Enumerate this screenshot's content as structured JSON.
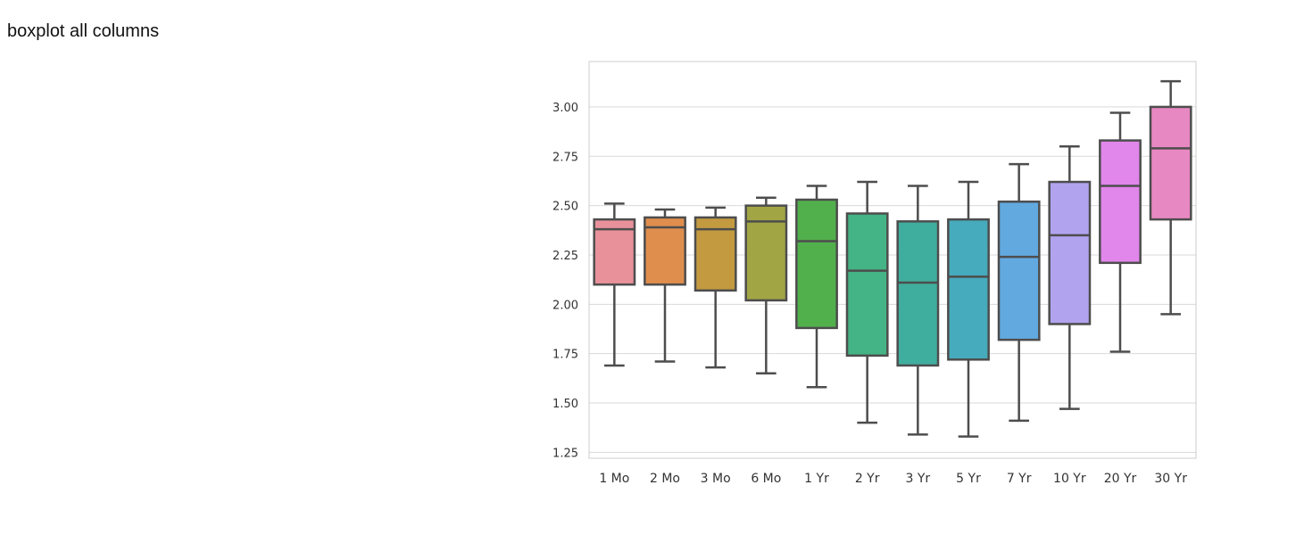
{
  "page": {
    "caption": "boxplot all columns"
  },
  "chart_data": {
    "type": "boxplot",
    "title": "",
    "xlabel": "",
    "ylabel": "",
    "ylim": [
      1.22,
      3.23
    ],
    "yticks": [
      "1.25",
      "1.50",
      "1.75",
      "2.00",
      "2.25",
      "2.50",
      "2.75",
      "3.00"
    ],
    "ytick_values": [
      1.25,
      1.5,
      1.75,
      2.0,
      2.25,
      2.5,
      2.75,
      3.0
    ],
    "grid": true,
    "categories": [
      "1 Mo",
      "2 Mo",
      "3 Mo",
      "6 Mo",
      "1 Yr",
      "2 Yr",
      "3 Yr",
      "5 Yr",
      "7 Yr",
      "10 Yr",
      "20 Yr",
      "30 Yr"
    ],
    "boxes": [
      {
        "label": "1 Mo",
        "whislo": 1.69,
        "q1": 2.1,
        "med": 2.38,
        "q3": 2.43,
        "whishi": 2.51,
        "color": "#e8919b"
      },
      {
        "label": "2 Mo",
        "whislo": 1.71,
        "q1": 2.1,
        "med": 2.39,
        "q3": 2.44,
        "whishi": 2.48,
        "color": "#e08e4d"
      },
      {
        "label": "3 Mo",
        "whislo": 1.68,
        "q1": 2.07,
        "med": 2.38,
        "q3": 2.44,
        "whishi": 2.49,
        "color": "#c39a40"
      },
      {
        "label": "6 Mo",
        "whislo": 1.65,
        "q1": 2.02,
        "med": 2.42,
        "q3": 2.5,
        "whishi": 2.54,
        "color": "#a2a544"
      },
      {
        "label": "1 Yr",
        "whislo": 1.58,
        "q1": 1.88,
        "med": 2.32,
        "q3": 2.53,
        "whishi": 2.6,
        "color": "#52b04c"
      },
      {
        "label": "2 Yr",
        "whislo": 1.4,
        "q1": 1.74,
        "med": 2.17,
        "q3": 2.46,
        "whishi": 2.62,
        "color": "#44b385"
      },
      {
        "label": "3 Yr",
        "whislo": 1.34,
        "q1": 1.69,
        "med": 2.11,
        "q3": 2.42,
        "whishi": 2.6,
        "color": "#40ae9e"
      },
      {
        "label": "5 Yr",
        "whislo": 1.33,
        "q1": 1.72,
        "med": 2.14,
        "q3": 2.43,
        "whishi": 2.62,
        "color": "#46abbc"
      },
      {
        "label": "7 Yr",
        "whislo": 1.41,
        "q1": 1.82,
        "med": 2.24,
        "q3": 2.52,
        "whishi": 2.71,
        "color": "#62a9e0"
      },
      {
        "label": "10 Yr",
        "whislo": 1.47,
        "q1": 1.9,
        "med": 2.35,
        "q3": 2.62,
        "whishi": 2.8,
        "color": "#b1a3ee"
      },
      {
        "label": "20 Yr",
        "whislo": 1.76,
        "q1": 2.21,
        "med": 2.6,
        "q3": 2.83,
        "whishi": 2.97,
        "color": "#e186ea"
      },
      {
        "label": "30 Yr",
        "whislo": 1.95,
        "q1": 2.43,
        "med": 2.79,
        "q3": 3.0,
        "whishi": 3.13,
        "color": "#e888c2"
      }
    ],
    "colors": {
      "grid": "#d9d9d9",
      "spine": "#cccccc",
      "line": "#4d4d4d"
    }
  }
}
